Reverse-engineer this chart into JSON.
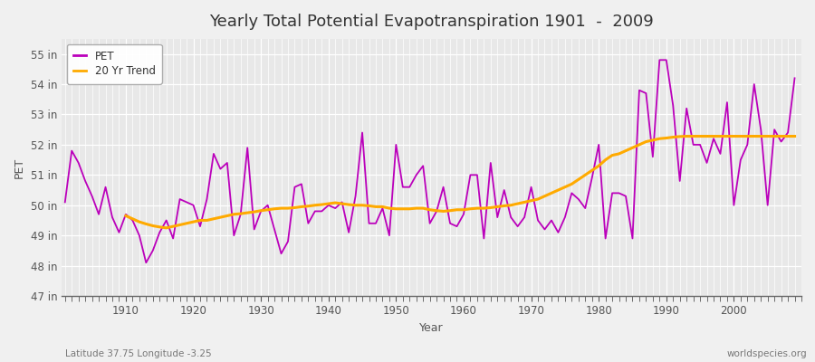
{
  "title": "Yearly Total Potential Evapotranspiration 1901  -  2009",
  "xlabel": "Year",
  "ylabel": "PET",
  "subtitle_left": "Latitude 37.75 Longitude -3.25",
  "subtitle_right": "worldspecies.org",
  "pet_color": "#bb00bb",
  "trend_color": "#ffaa00",
  "background_color": "#f0f0f0",
  "plot_bg_color": "#e8e8e8",
  "grid_color": "#ffffff",
  "ylim": [
    47,
    55.5
  ],
  "yticks": [
    47,
    48,
    49,
    50,
    51,
    52,
    53,
    54,
    55
  ],
  "ytick_labels": [
    "47 in",
    "48 in",
    "49 in",
    "50 in",
    "51 in",
    "52 in",
    "53 in",
    "54 in",
    "55 in"
  ],
  "xlim": [
    1900.5,
    2010
  ],
  "xticks": [
    1910,
    1920,
    1930,
    1940,
    1950,
    1960,
    1970,
    1980,
    1990,
    2000
  ],
  "years": [
    1901,
    1902,
    1903,
    1904,
    1905,
    1906,
    1907,
    1908,
    1909,
    1910,
    1911,
    1912,
    1913,
    1914,
    1915,
    1916,
    1917,
    1918,
    1919,
    1920,
    1921,
    1922,
    1923,
    1924,
    1925,
    1926,
    1927,
    1928,
    1929,
    1930,
    1931,
    1932,
    1933,
    1934,
    1935,
    1936,
    1937,
    1938,
    1939,
    1940,
    1941,
    1942,
    1943,
    1944,
    1945,
    1946,
    1947,
    1948,
    1949,
    1950,
    1951,
    1952,
    1953,
    1954,
    1955,
    1956,
    1957,
    1958,
    1959,
    1960,
    1961,
    1962,
    1963,
    1964,
    1965,
    1966,
    1967,
    1968,
    1969,
    1970,
    1971,
    1972,
    1973,
    1974,
    1975,
    1976,
    1977,
    1978,
    1979,
    1980,
    1981,
    1982,
    1983,
    1984,
    1985,
    1986,
    1987,
    1988,
    1989,
    1990,
    1991,
    1992,
    1993,
    1994,
    1995,
    1996,
    1997,
    1998,
    1999,
    2000,
    2001,
    2002,
    2003,
    2004,
    2005,
    2006,
    2007,
    2008,
    2009
  ],
  "pet_values": [
    50.1,
    51.8,
    51.4,
    50.8,
    50.3,
    49.7,
    50.6,
    49.6,
    49.1,
    49.7,
    49.5,
    49.0,
    48.1,
    48.5,
    49.1,
    49.5,
    48.9,
    50.2,
    50.1,
    50.0,
    49.3,
    50.2,
    51.7,
    51.2,
    51.4,
    49.0,
    49.7,
    51.9,
    49.2,
    49.8,
    50.0,
    49.2,
    48.4,
    48.8,
    50.6,
    50.7,
    49.4,
    49.8,
    49.8,
    50.0,
    49.9,
    50.1,
    49.1,
    50.3,
    52.4,
    49.4,
    49.4,
    49.9,
    49.0,
    52.0,
    50.6,
    50.6,
    51.0,
    51.3,
    49.4,
    49.8,
    50.6,
    49.4,
    49.3,
    49.7,
    51.0,
    51.0,
    48.9,
    51.4,
    49.6,
    50.5,
    49.6,
    49.3,
    49.6,
    50.6,
    49.5,
    49.2,
    49.5,
    49.1,
    49.6,
    50.4,
    50.2,
    49.9,
    50.9,
    52.0,
    48.9,
    50.4,
    50.4,
    50.3,
    48.9,
    53.8,
    53.7,
    51.6,
    54.8,
    54.8,
    53.3,
    50.8,
    53.2,
    52.0,
    52.0,
    51.4,
    52.2,
    51.7,
    53.4,
    50.0,
    51.5,
    52.0,
    54.0,
    52.5,
    50.0,
    52.5,
    52.1,
    52.4,
    54.2
  ],
  "trend_years": [
    1910,
    1911,
    1912,
    1913,
    1914,
    1915,
    1916,
    1917,
    1918,
    1919,
    1920,
    1921,
    1922,
    1923,
    1924,
    1925,
    1926,
    1927,
    1928,
    1929,
    1930,
    1931,
    1932,
    1933,
    1934,
    1935,
    1936,
    1937,
    1938,
    1939,
    1940,
    1941,
    1942,
    1943,
    1944,
    1945,
    1946,
    1947,
    1948,
    1949,
    1950,
    1951,
    1952,
    1953,
    1954,
    1955,
    1956,
    1957,
    1958,
    1959,
    1960,
    1961,
    1962,
    1963,
    1964,
    1965,
    1966,
    1967,
    1968,
    1969,
    1970,
    1971,
    1972,
    1973,
    1974,
    1975,
    1976,
    1977,
    1978,
    1979,
    1980,
    1981,
    1982,
    1983,
    1984,
    1985,
    1986,
    1987,
    1988,
    1989,
    1990,
    1991,
    1992,
    1993,
    1994,
    1995,
    1996,
    1997,
    1998,
    1999,
    2000,
    2001,
    2002,
    2003,
    2004,
    2005,
    2006,
    2007,
    2008,
    2009
  ],
  "trend_values": [
    49.65,
    49.55,
    49.45,
    49.38,
    49.32,
    49.28,
    49.25,
    49.3,
    49.35,
    49.4,
    49.45,
    49.5,
    49.5,
    49.55,
    49.6,
    49.65,
    49.7,
    49.72,
    49.75,
    49.78,
    49.82,
    49.85,
    49.88,
    49.9,
    49.9,
    49.92,
    49.95,
    49.97,
    50.0,
    50.02,
    50.05,
    50.08,
    50.05,
    50.02,
    50.0,
    50.0,
    49.98,
    49.95,
    49.95,
    49.9,
    49.88,
    49.88,
    49.88,
    49.9,
    49.9,
    49.85,
    49.82,
    49.8,
    49.82,
    49.85,
    49.85,
    49.88,
    49.9,
    49.9,
    49.92,
    49.95,
    49.98,
    50.0,
    50.05,
    50.1,
    50.15,
    50.2,
    50.3,
    50.4,
    50.5,
    50.6,
    50.7,
    50.85,
    51.0,
    51.15,
    51.3,
    51.5,
    51.65,
    51.7,
    51.8,
    51.9,
    52.0,
    52.1,
    52.15,
    52.2,
    52.22,
    52.25,
    52.27,
    52.28,
    52.28,
    52.28,
    52.28,
    52.28,
    52.28,
    52.28,
    52.28,
    52.28,
    52.28,
    52.28,
    52.28,
    52.28,
    52.28,
    52.28,
    52.28,
    52.28
  ]
}
